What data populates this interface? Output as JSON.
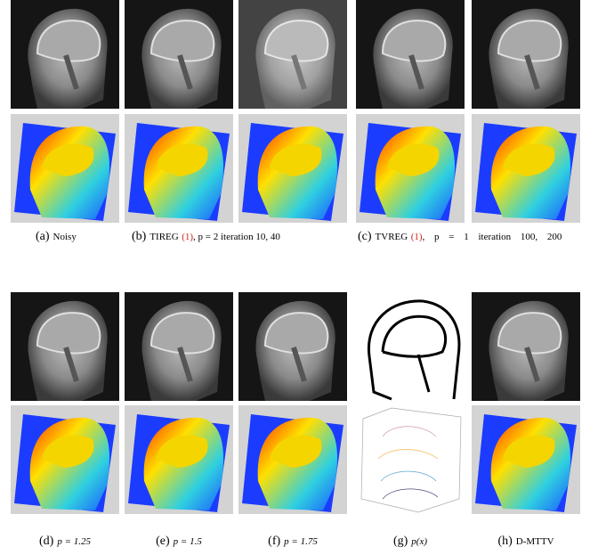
{
  "figure": {
    "captions_top": [
      {
        "label": "(a)",
        "text": "Noisy"
      },
      {
        "label": "(b)",
        "text": "TIREG",
        "ref": "(1)",
        "rest": ", p = 2 iteration 10, 40"
      },
      {
        "label": "(c)",
        "text": "TVREG",
        "ref": "(1)",
        "rest": ", p = 1 iteration 100, 200"
      }
    ],
    "captions_bottom": [
      {
        "label": "(d)",
        "text": "p = 1.25"
      },
      {
        "label": "(e)",
        "text": "p = 1.5"
      },
      {
        "label": "(f)",
        "text": "p = 1.75"
      },
      {
        "label": "(g)",
        "text": "p(x)"
      },
      {
        "label": "(h)",
        "text": "D-MTTV"
      }
    ]
  }
}
